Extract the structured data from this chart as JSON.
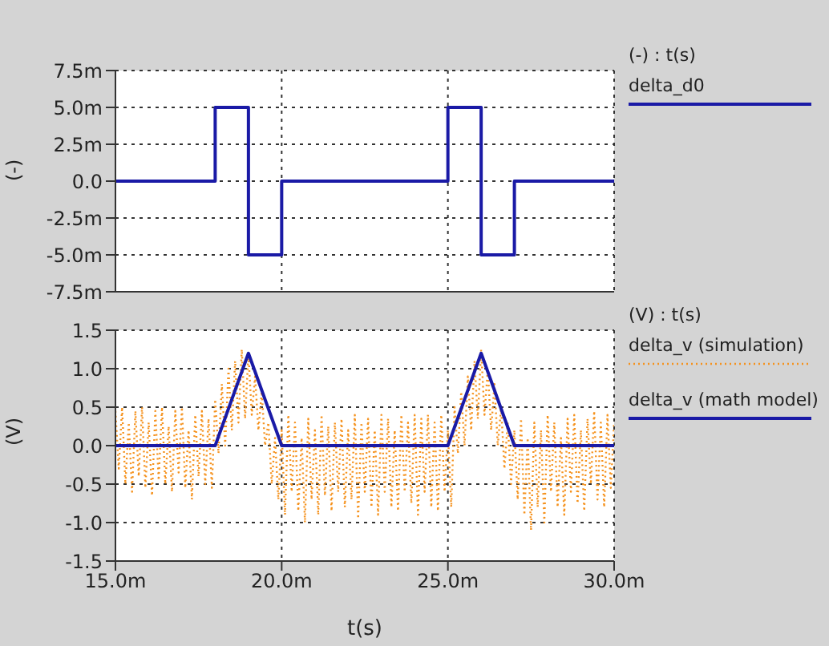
{
  "chart_data": [
    {
      "type": "step",
      "ylabel": "(-)",
      "legend_title": "(-) : t(s)",
      "legend": "right",
      "grid": true,
      "tick_labels": "y",
      "xlim": [
        15,
        30
      ],
      "xticks": [
        15,
        20,
        25,
        30
      ],
      "ylim": [
        -7.5,
        7.5
      ],
      "yticks": [
        {
          "value": -7.5,
          "label": "-7.5m"
        },
        {
          "value": -5,
          "label": "-5.0m"
        },
        {
          "value": -2.5,
          "label": "-2.5m"
        },
        {
          "value": 0,
          "label": "0.0"
        },
        {
          "value": 2.5,
          "label": "2.5m"
        },
        {
          "value": 5,
          "label": "5.0m"
        },
        {
          "value": 7.5,
          "label": "7.5m"
        }
      ],
      "series": [
        {
          "name": "delta_d0",
          "color": "#1a1aa6",
          "line_style": "solid",
          "x": [
            15,
            18,
            19,
            20,
            25,
            26,
            27,
            30
          ],
          "values": [
            0,
            5,
            -5,
            0,
            5,
            -5,
            0,
            0
          ]
        }
      ]
    },
    {
      "type": "line",
      "ylabel": "(V)",
      "xlabel": "t(s)",
      "legend_title": "(V) : t(s)",
      "legend": "right",
      "grid": true,
      "xlim": [
        15,
        30
      ],
      "xticks": [
        {
          "value": 15,
          "label": "15.0m"
        },
        {
          "value": 20,
          "label": "20.0m"
        },
        {
          "value": 25,
          "label": "25.0m"
        },
        {
          "value": 30,
          "label": "30.0m"
        }
      ],
      "ylim": [
        -1.5,
        1.5
      ],
      "yticks": [
        -1.5,
        {
          "value": -1,
          "label": "-1.0"
        },
        -0.5,
        {
          "value": 0,
          "label": "0.0"
        },
        0.5,
        {
          "value": 1,
          "label": "1.0"
        },
        1.5
      ],
      "series": [
        {
          "name": "delta_v (simulation)",
          "color": "#f5921e",
          "line_style": "dotted",
          "x": [
            15,
            15.1,
            15.2,
            15.3,
            15.4,
            15.5,
            15.6,
            15.7,
            15.8,
            15.9,
            16,
            16.1,
            16.2,
            16.3,
            16.4,
            16.5,
            16.6,
            16.7,
            16.8,
            16.9,
            17,
            17.1,
            17.2,
            17.3,
            17.4,
            17.5,
            17.6,
            17.7,
            17.8,
            17.9,
            18,
            18.1,
            18.2,
            18.3,
            18.4,
            18.5,
            18.6,
            18.7,
            18.8,
            18.9,
            19,
            19.1,
            19.2,
            19.3,
            19.4,
            19.5,
            19.6,
            19.7,
            19.8,
            19.9,
            20,
            20.1,
            20.2,
            20.3,
            20.4,
            20.5,
            20.6,
            20.7,
            20.8,
            20.9,
            21,
            21.1,
            21.2,
            21.3,
            21.4,
            21.5,
            21.6,
            21.7,
            21.8,
            21.9,
            22,
            22.1,
            22.2,
            22.3,
            22.4,
            22.5,
            22.6,
            22.7,
            22.8,
            22.9,
            23,
            23.1,
            23.2,
            23.3,
            23.4,
            23.5,
            23.6,
            23.7,
            23.8,
            23.9,
            24,
            24.1,
            24.2,
            24.3,
            24.4,
            24.5,
            24.6,
            24.7,
            24.8,
            24.9,
            25,
            25.1,
            25.2,
            25.3,
            25.4,
            25.5,
            25.6,
            25.7,
            25.8,
            25.9,
            26,
            26.1,
            26.2,
            26.3,
            26.4,
            26.5,
            26.6,
            26.7,
            26.8,
            26.9,
            27,
            27.1,
            27.2,
            27.3,
            27.4,
            27.5,
            27.6,
            27.7,
            27.8,
            27.9,
            28,
            28.1,
            28.2,
            28.3,
            28.4,
            28.5,
            28.6,
            28.7,
            28.8,
            28.9,
            29,
            29.1,
            29.2,
            29.3,
            29.4,
            29.5,
            29.6,
            29.7,
            29.8,
            29.9,
            30
          ],
          "values": [
            0.45,
            -0.3,
            0.5,
            -0.5,
            0.3,
            -0.6,
            0.45,
            -0.4,
            0.5,
            -0.55,
            0.3,
            -0.65,
            0.45,
            -0.45,
            0.5,
            -0.5,
            0.25,
            -0.6,
            0.45,
            -0.35,
            0.5,
            -0.55,
            0.2,
            -0.7,
            0.4,
            -0.4,
            0.45,
            -0.5,
            0.35,
            -0.55,
            0.6,
            -0.1,
            0.8,
            0.0,
            1.0,
            0.2,
            1.1,
            0.3,
            1.25,
            0.35,
            1.2,
            0.4,
            0.9,
            0.2,
            0.7,
            0.0,
            0.3,
            -0.5,
            0.1,
            -0.7,
            0.2,
            -0.9,
            0.4,
            -0.6,
            0.3,
            -0.85,
            0.1,
            -1.0,
            0.35,
            -0.7,
            0.2,
            -0.9,
            0.4,
            -0.65,
            0.25,
            -0.85,
            0.3,
            -0.6,
            0.35,
            -0.8,
            0.2,
            -0.7,
            0.4,
            -0.95,
            0.3,
            -0.6,
            0.35,
            -0.8,
            0.2,
            -0.9,
            0.4,
            -0.6,
            0.35,
            -0.8,
            0.2,
            -0.85,
            0.4,
            -0.6,
            0.3,
            -0.75,
            0.4,
            -0.9,
            0.35,
            -0.6,
            0.4,
            -0.8,
            0.3,
            -0.85,
            0.4,
            -0.6,
            0.2,
            -0.8,
            0.5,
            -0.1,
            0.7,
            0.0,
            0.9,
            0.2,
            1.1,
            0.35,
            1.25,
            0.4,
            1.0,
            0.2,
            0.8,
            0.0,
            0.5,
            -0.3,
            0.3,
            -0.5,
            0.2,
            -0.7,
            0.35,
            -0.9,
            0.1,
            -1.1,
            0.3,
            -0.8,
            0.2,
            -1.0,
            0.4,
            -0.6,
            0.3,
            -0.8,
            0.1,
            -0.9,
            0.35,
            -0.6,
            0.4,
            -0.75,
            0.2,
            -0.85,
            0.35,
            -0.5,
            0.45,
            -0.7,
            0.3,
            -0.8,
            0.4,
            -0.55,
            0.3
          ]
        },
        {
          "name": "delta_v (math model)",
          "color": "#1a1aa6",
          "line_style": "solid",
          "x": [
            15,
            18,
            19,
            20,
            25,
            26,
            27,
            30
          ],
          "values": [
            0,
            0,
            1.2,
            0,
            0,
            1.2,
            0,
            0
          ]
        }
      ]
    }
  ]
}
